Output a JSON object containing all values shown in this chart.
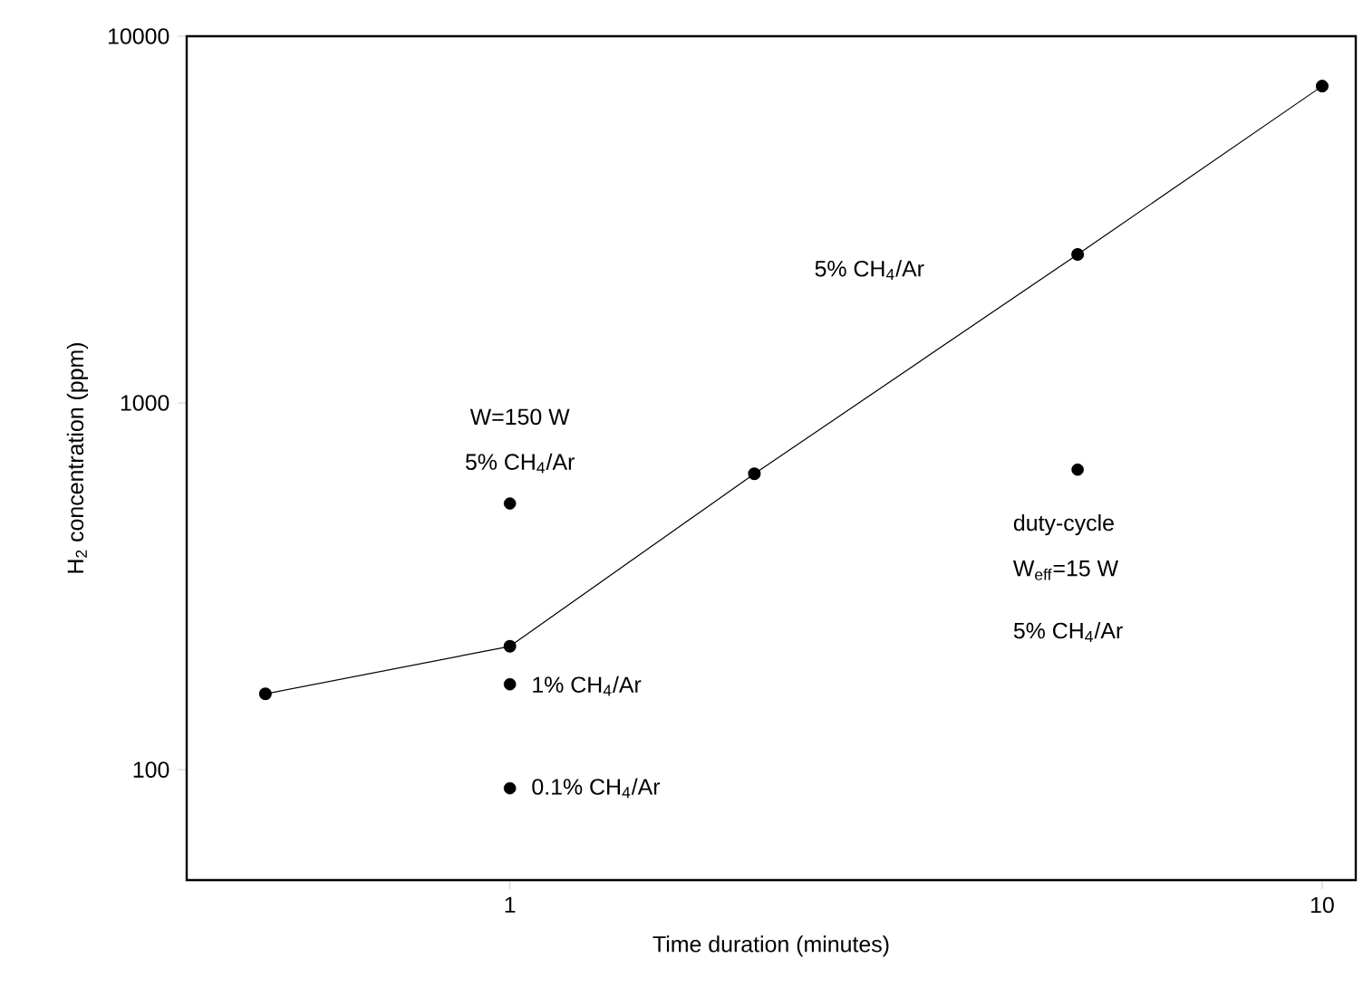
{
  "chart_data": {
    "type": "line",
    "xlabel": "Time duration (minutes)",
    "ylabel": "H$_{2}$ concentration (ppm)",
    "log": "xy",
    "xlim": [
      0.4,
      11
    ],
    "ylim": [
      50,
      10000
    ],
    "xticks": [
      1,
      10
    ],
    "yticks": [
      100,
      1000,
      10000
    ],
    "grid": false,
    "series": [
      {
        "color": "#000000",
        "marker": "circle",
        "line_style": "solid",
        "x": [
          0.5,
          1,
          2,
          5,
          10
        ],
        "values": [
          161,
          217,
          641,
          2541,
          7310
        ]
      },
      {
        "type": "scatter",
        "color": "#000000",
        "marker": "circle",
        "x": [
          1,
          1,
          1,
          5
        ],
        "values": [
          532,
          171,
          89,
          658
        ]
      }
    ],
    "annotations": [
      "W=150 W",
      "5% CH$_{4}$/Ar",
      "1% CH$_{4}$/Ar",
      "0.1% CH$_{4}$/Ar",
      "duty-cycle",
      "W$_{eff}$=15 W",
      "5% CH$_{4}$/Ar",
      "5% CH$_{4}$/Ar"
    ]
  }
}
